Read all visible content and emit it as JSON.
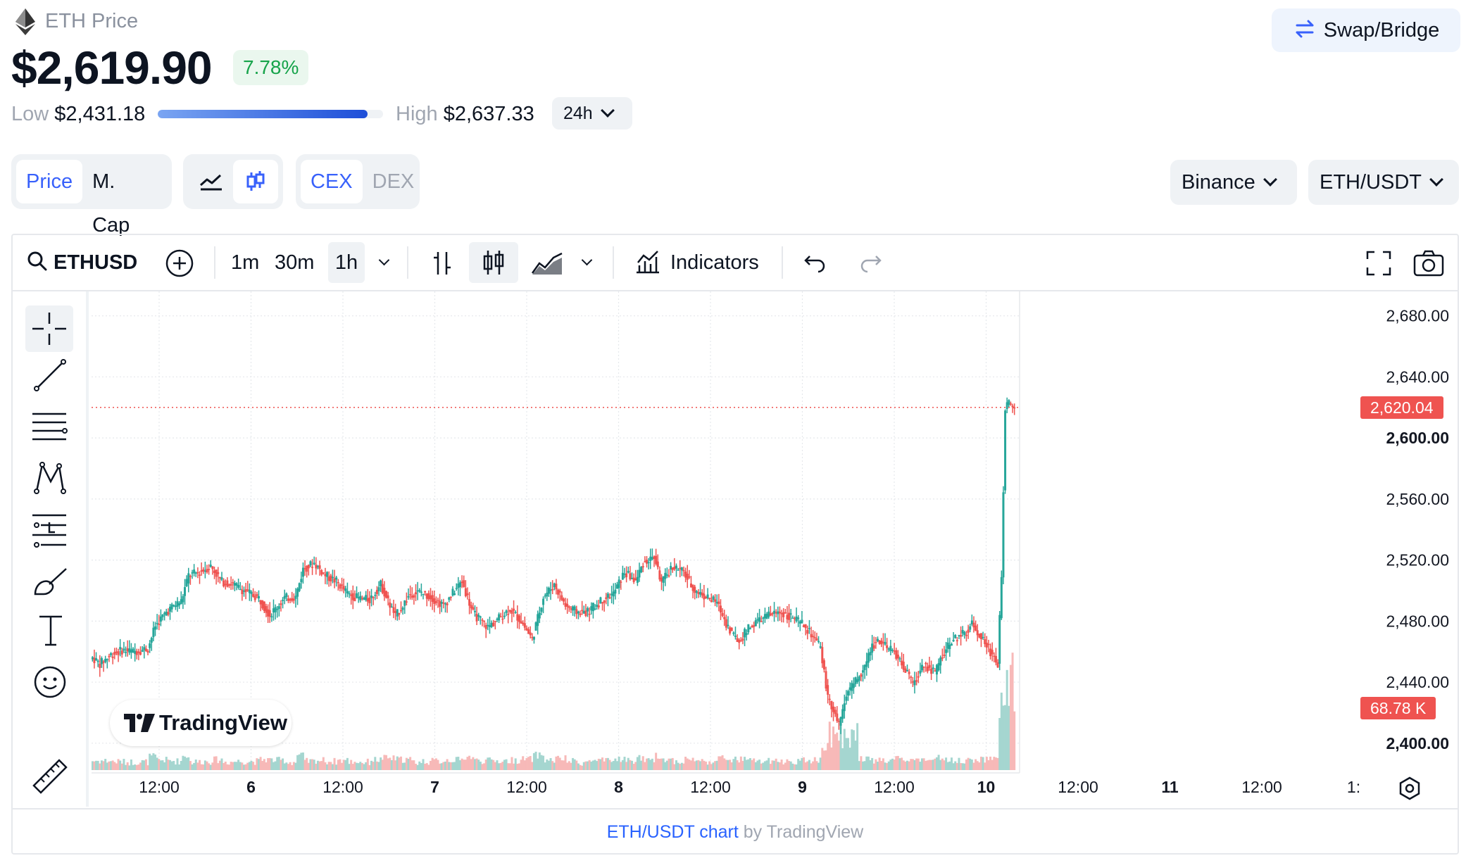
{
  "header": {
    "title": "ETH Price",
    "price": "$2,619.90",
    "change": "7.78%",
    "low_label": "Low",
    "low_value": "$2,431.18",
    "high_label": "High",
    "high_value": "$2,637.33",
    "range_position": 0.93,
    "period": "24h",
    "swap_label": "Swap/Bridge"
  },
  "toggles": {
    "metric": [
      "Price",
      "M. Cap"
    ],
    "metric_selected": "Price",
    "chart_style": [
      "line-chart-icon",
      "candlestick-icon"
    ],
    "chart_style_selected": "candlestick-icon",
    "market": [
      "CEX",
      "DEX"
    ],
    "market_selected": "CEX",
    "exchange": "Binance",
    "pair": "ETH/USDT"
  },
  "toolbar": {
    "symbol": "ETHUSD",
    "intervals": [
      "1m",
      "30m",
      "1h"
    ],
    "interval_selected": "1h",
    "indicators_label": "Indicators"
  },
  "sidebar_tools": [
    "crosshair-icon",
    "trend-line-icon",
    "horizontal-lines-icon",
    "pattern-icon",
    "fib-icon",
    "brush-icon",
    "text-icon",
    "emoji-icon",
    "ruler-icon"
  ],
  "chart_data": {
    "type": "candlestick",
    "y_ticks": [
      "2,680.00",
      "2,640.00",
      "2,600.00",
      "2,560.00",
      "2,520.00",
      "2,480.00",
      "2,440.00",
      "2,400.00"
    ],
    "y_tick_values": [
      2680,
      2640,
      2600,
      2560,
      2520,
      2480,
      2440,
      2400
    ],
    "ylim": [
      2387,
      2696
    ],
    "x_ticks": [
      "12:00",
      "6",
      "12:00",
      "7",
      "12:00",
      "8",
      "12:00",
      "9",
      "12:00",
      "10",
      "12:00",
      "11",
      "12:00",
      "1:"
    ],
    "last_price_label": "2,620.04",
    "last_price": 2620.04,
    "volume_label": "68.78 K",
    "grid": true,
    "colors": {
      "up": "#26a69a",
      "down": "#ef5350",
      "up_volume": "#a5d6d0",
      "down_volume": "#f7b9b8"
    },
    "segments": [
      [
        0,
        2456
      ],
      [
        4,
        2452
      ],
      [
        10,
        2458
      ],
      [
        16,
        2461
      ],
      [
        22,
        2460
      ],
      [
        30,
        2462
      ],
      [
        34,
        2477
      ],
      [
        40,
        2486
      ],
      [
        44,
        2490
      ],
      [
        48,
        2493
      ],
      [
        52,
        2510
      ],
      [
        58,
        2512
      ],
      [
        64,
        2516
      ],
      [
        70,
        2506
      ],
      [
        76,
        2504
      ],
      [
        82,
        2500
      ],
      [
        90,
        2495
      ],
      [
        96,
        2484
      ],
      [
        104,
        2495
      ],
      [
        110,
        2496
      ],
      [
        114,
        2514
      ],
      [
        120,
        2518
      ],
      [
        126,
        2510
      ],
      [
        132,
        2506
      ],
      [
        138,
        2498
      ],
      [
        144,
        2495
      ],
      [
        150,
        2494
      ],
      [
        156,
        2504
      ],
      [
        160,
        2493
      ],
      [
        164,
        2483
      ],
      [
        172,
        2498
      ],
      [
        178,
        2499
      ],
      [
        184,
        2495
      ],
      [
        190,
        2490
      ],
      [
        196,
        2500
      ],
      [
        200,
        2506
      ],
      [
        206,
        2485
      ],
      [
        214,
        2476
      ],
      [
        220,
        2482
      ],
      [
        226,
        2488
      ],
      [
        232,
        2480
      ],
      [
        238,
        2468
      ],
      [
        244,
        2496
      ],
      [
        250,
        2504
      ],
      [
        256,
        2490
      ],
      [
        262,
        2486
      ],
      [
        268,
        2486
      ],
      [
        276,
        2494
      ],
      [
        282,
        2498
      ],
      [
        288,
        2512
      ],
      [
        294,
        2506
      ],
      [
        298,
        2518
      ],
      [
        304,
        2522
      ],
      [
        308,
        2505
      ],
      [
        314,
        2516
      ],
      [
        320,
        2512
      ],
      [
        326,
        2500
      ],
      [
        332,
        2496
      ],
      [
        338,
        2492
      ],
      [
        344,
        2476
      ],
      [
        350,
        2466
      ],
      [
        354,
        2474
      ],
      [
        360,
        2480
      ],
      [
        366,
        2484
      ],
      [
        372,
        2486
      ],
      [
        378,
        2483
      ],
      [
        384,
        2478
      ],
      [
        390,
        2470
      ],
      [
        394,
        2462
      ],
      [
        398,
        2430
      ],
      [
        404,
        2412
      ],
      [
        408,
        2432
      ],
      [
        414,
        2442
      ],
      [
        418,
        2450
      ],
      [
        422,
        2464
      ],
      [
        426,
        2468
      ],
      [
        430,
        2462
      ],
      [
        434,
        2460
      ],
      [
        440,
        2448
      ],
      [
        444,
        2438
      ],
      [
        450,
        2452
      ],
      [
        456,
        2446
      ],
      [
        460,
        2458
      ],
      [
        466,
        2468
      ],
      [
        472,
        2472
      ],
      [
        476,
        2478
      ],
      [
        482,
        2468
      ],
      [
        486,
        2460
      ],
      [
        490,
        2452
      ],
      [
        492,
        2510
      ],
      [
        494,
        2620
      ],
      [
        496,
        2622
      ],
      [
        499,
        2620
      ]
    ]
  },
  "branding": {
    "tradingview": "TradingView"
  },
  "footer": {
    "link_text": "ETH/USDT chart",
    "by_text": "by TradingView"
  }
}
